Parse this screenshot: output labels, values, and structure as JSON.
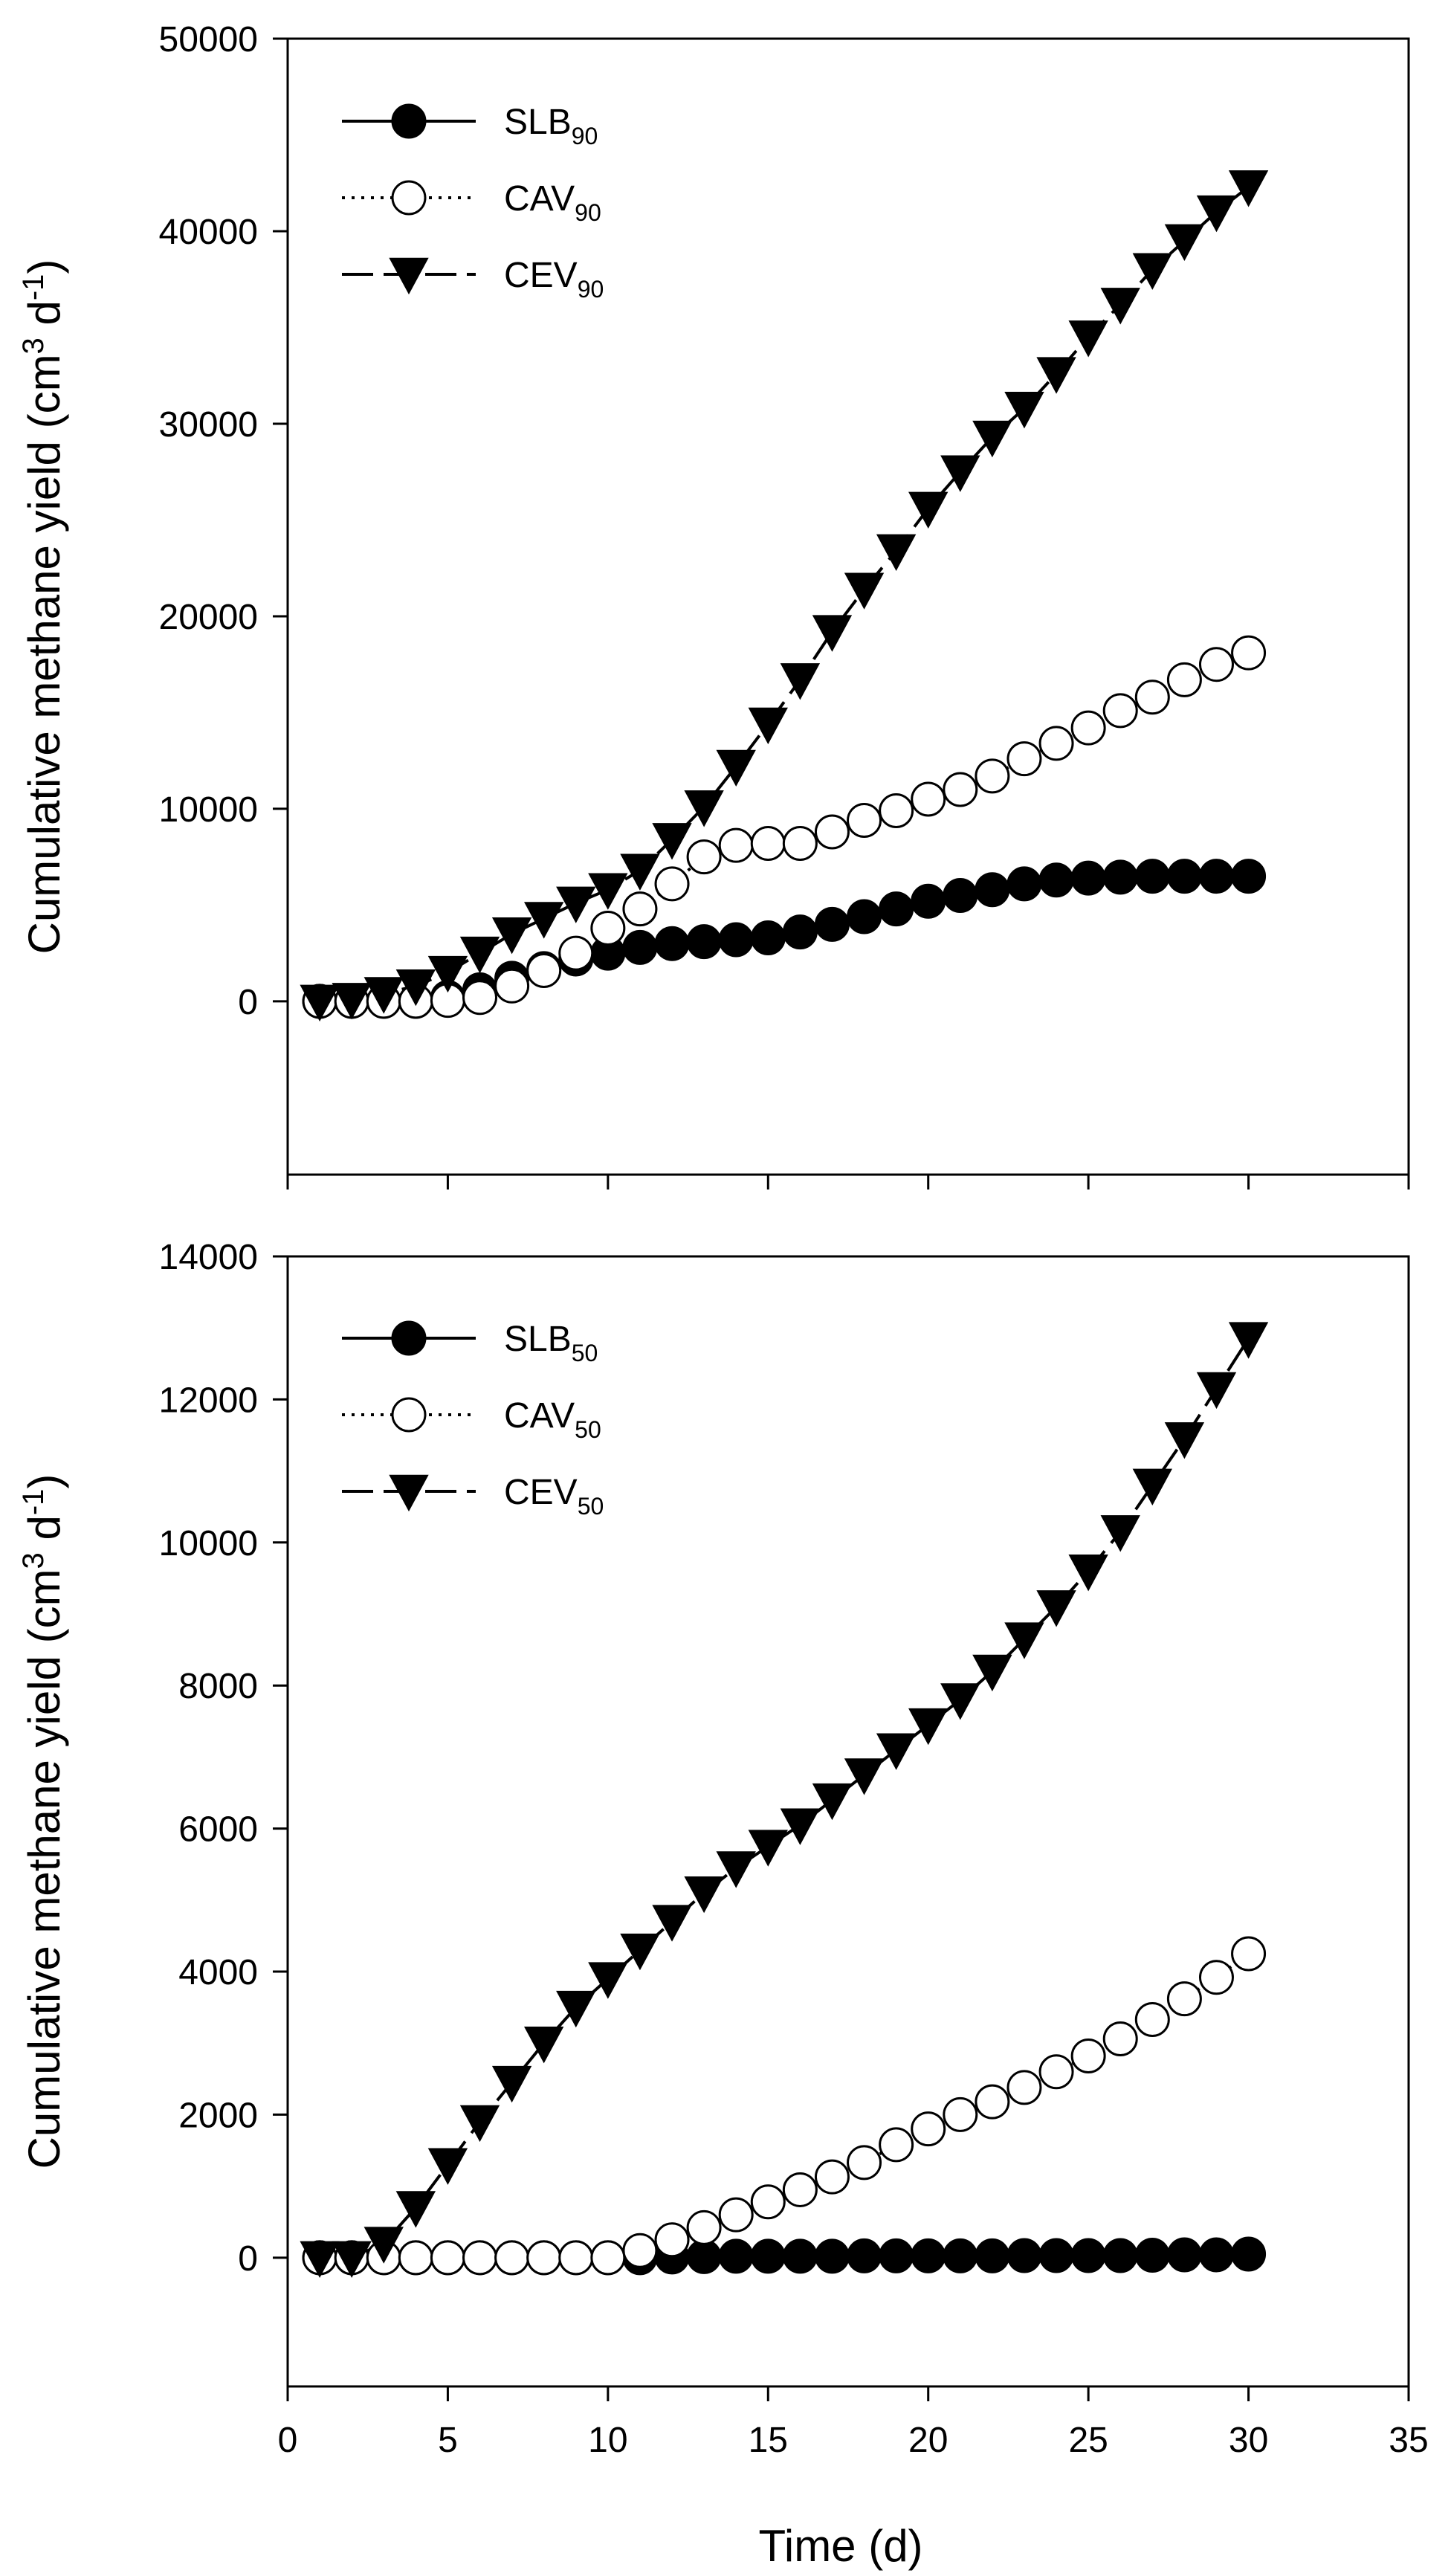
{
  "chart_data": [
    {
      "type": "line",
      "xlabel": "",
      "ylabel": "Cumulative methane yield (cm3 d-1)",
      "ylabel_parts": {
        "pre": "Cumulative methane yield (cm",
        "sup1": "3",
        "mid": " d",
        "sup2": "-1",
        "post": ")"
      },
      "xlim": [
        0,
        35
      ],
      "ylim": [
        -9000,
        50000
      ],
      "xticks": [
        0,
        5,
        10,
        15,
        20,
        25,
        30,
        35
      ],
      "yticks": [
        0,
        10000,
        20000,
        30000,
        40000,
        50000
      ],
      "x": [
        1,
        2,
        3,
        4,
        5,
        6,
        7,
        8,
        9,
        10,
        11,
        12,
        13,
        14,
        15,
        16,
        17,
        18,
        19,
        20,
        21,
        22,
        23,
        24,
        25,
        26,
        27,
        28,
        29,
        30
      ],
      "series": [
        {
          "name": "SLB90",
          "label_main": "SLB",
          "label_sub": "90",
          "marker": "filled-circle",
          "line": "solid",
          "values": [
            0,
            0,
            0,
            0,
            200,
            600,
            1200,
            1700,
            2200,
            2500,
            2800,
            3000,
            3100,
            3200,
            3300,
            3600,
            4000,
            4400,
            4800,
            5200,
            5500,
            5800,
            6100,
            6300,
            6400,
            6450,
            6500,
            6500,
            6500,
            6500
          ]
        },
        {
          "name": "CAV90",
          "label_main": "CAV",
          "label_sub": "90",
          "marker": "open-circle",
          "line": "dotted",
          "values": [
            0,
            0,
            0,
            0,
            50,
            200,
            800,
            1600,
            2500,
            3800,
            4800,
            6100,
            7500,
            8100,
            8200,
            8200,
            8800,
            9400,
            9900,
            10500,
            11000,
            11700,
            12600,
            13400,
            14200,
            15100,
            15800,
            16700,
            17500,
            18100
          ]
        },
        {
          "name": "CEV90",
          "label_main": "CEV",
          "label_sub": "90",
          "marker": "filled-triangle-down",
          "line": "dashed",
          "values": [
            0,
            100,
            400,
            800,
            1500,
            2500,
            3500,
            4300,
            5100,
            5800,
            6800,
            8400,
            10100,
            12200,
            14400,
            16700,
            19200,
            21400,
            23400,
            25600,
            27500,
            29300,
            30800,
            32600,
            34500,
            36200,
            38000,
            39500,
            41000,
            42300
          ]
        }
      ]
    },
    {
      "type": "line",
      "xlabel": "Time (d)",
      "ylabel": "Cumulative methane yield (cm3 d-1)",
      "ylabel_parts": {
        "pre": "Cumulative methane yield (cm",
        "sup1": "3",
        "mid": " d",
        "sup2": "-1",
        "post": ")"
      },
      "xlim": [
        0,
        35
      ],
      "ylim": [
        -1800,
        14000
      ],
      "xticks": [
        0,
        5,
        10,
        15,
        20,
        25,
        30,
        35
      ],
      "yticks": [
        0,
        2000,
        4000,
        6000,
        8000,
        10000,
        12000,
        14000
      ],
      "x": [
        1,
        2,
        3,
        4,
        5,
        6,
        7,
        8,
        9,
        10,
        11,
        12,
        13,
        14,
        15,
        16,
        17,
        18,
        19,
        20,
        21,
        22,
        23,
        24,
        25,
        26,
        27,
        28,
        29,
        30
      ],
      "series": [
        {
          "name": "SLB50",
          "label_main": "SLB",
          "label_sub": "50",
          "marker": "filled-circle",
          "line": "solid",
          "values": [
            0,
            0,
            0,
            0,
            0,
            0,
            0,
            0,
            0,
            0,
            0,
            10,
            15,
            20,
            20,
            20,
            20,
            25,
            25,
            25,
            25,
            25,
            30,
            30,
            30,
            30,
            35,
            40,
            40,
            50
          ]
        },
        {
          "name": "CAV50",
          "label_main": "CAV",
          "label_sub": "50",
          "marker": "open-circle",
          "line": "dotted",
          "values": [
            0,
            0,
            0,
            0,
            0,
            0,
            0,
            0,
            0,
            0,
            100,
            250,
            420,
            600,
            780,
            950,
            1130,
            1330,
            1580,
            1800,
            2000,
            2180,
            2380,
            2600,
            2820,
            3060,
            3330,
            3620,
            3920,
            4250
          ]
        },
        {
          "name": "CEV50",
          "label_main": "CEV",
          "label_sub": "50",
          "marker": "filled-triangle-down",
          "line": "dashed",
          "values": [
            0,
            0,
            200,
            700,
            1300,
            1900,
            2450,
            3000,
            3500,
            3900,
            4300,
            4700,
            5100,
            5450,
            5750,
            6050,
            6400,
            6750,
            7100,
            7450,
            7800,
            8200,
            8650,
            9100,
            9600,
            10150,
            10800,
            11450,
            12150,
            12850
          ]
        }
      ]
    }
  ]
}
